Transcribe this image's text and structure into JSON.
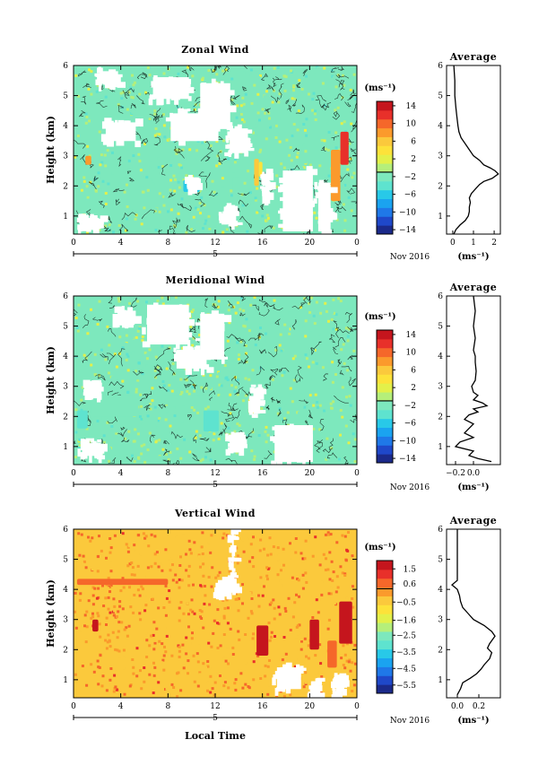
{
  "x_axis_label": "Local Time",
  "date_label": "Nov 2016",
  "date_day": "5",
  "chart_data": [
    {
      "type": "heatmap",
      "title": "Zonal Wind",
      "ylabel": "Height (km)",
      "xlabel": "",
      "xlim": [
        0,
        24
      ],
      "ylim": [
        0.4,
        6
      ],
      "x_ticks": [
        "0",
        "4",
        "8",
        "12",
        "16",
        "20",
        "0"
      ],
      "y_ticks": [
        "1",
        "2",
        "3",
        "4",
        "5",
        "6"
      ],
      "colorbar": {
        "unit": "(ms⁻¹)",
        "range": [
          -15,
          15
        ],
        "tick_values": [
          14,
          10,
          6,
          2,
          -2,
          -6,
          -10,
          -14
        ],
        "tick_labels": [
          "14",
          "10",
          "6",
          "2",
          "−2",
          "−6",
          "−10",
          "−14"
        ]
      },
      "dominant_value": -1,
      "background_color": "#7de8bd",
      "no_data_regions": [
        {
          "x": [
            2.0,
            4.0
          ],
          "y": [
            5.3,
            5.9
          ]
        },
        {
          "x": [
            6.5,
            10.0
          ],
          "y": [
            4.8,
            5.7
          ]
        },
        {
          "x": [
            10.5,
            13.5
          ],
          "y": [
            3.8,
            5.5
          ]
        },
        {
          "x": [
            2.5,
            5.5
          ],
          "y": [
            3.4,
            4.2
          ]
        },
        {
          "x": [
            8.0,
            12.5
          ],
          "y": [
            3.4,
            4.5
          ]
        },
        {
          "x": [
            13.0,
            15.0
          ],
          "y": [
            3.0,
            4.0
          ]
        },
        {
          "x": [
            0.5,
            2.5
          ],
          "y": [
            0.5,
            1.0
          ]
        },
        {
          "x": [
            9.5,
            10.5
          ],
          "y": [
            1.8,
            2.3
          ]
        },
        {
          "x": [
            12.5,
            14.0
          ],
          "y": [
            0.7,
            1.4
          ]
        },
        {
          "x": [
            16.0,
            16.8
          ],
          "y": [
            1.5,
            2.5
          ]
        },
        {
          "x": [
            17.5,
            20.5
          ],
          "y": [
            0.4,
            2.6
          ]
        },
        {
          "x": [
            20.5,
            22.0
          ],
          "y": [
            0.4,
            2.2
          ]
        }
      ],
      "features": [
        {
          "x": [
            1.0,
            1.5
          ],
          "y": [
            2.7,
            3.0
          ],
          "value": 8
        },
        {
          "x": [
            15.3,
            15.7
          ],
          "y": [
            2.0,
            2.9
          ],
          "value": 6
        },
        {
          "x": [
            22.6,
            23.3
          ],
          "y": [
            2.7,
            3.8
          ],
          "value": 12
        },
        {
          "x": [
            21.8,
            22.6
          ],
          "y": [
            1.5,
            3.2
          ],
          "value": 8
        },
        {
          "x": [
            15.7,
            16.0
          ],
          "y": [
            2.3,
            2.8
          ],
          "value": 4
        },
        {
          "x": [
            9.3,
            10.7
          ],
          "y": [
            1.8,
            2.2
          ],
          "value": -6
        },
        {
          "x": [
            3.0,
            4.5
          ],
          "y": [
            3.7,
            4.1
          ],
          "value": -4
        },
        {
          "x": [
            13.5,
            14.2
          ],
          "y": [
            1.8,
            2.3
          ],
          "value": -3
        }
      ],
      "profile": {
        "title": "Average",
        "xlabel": "(ms⁻¹)",
        "xlim": [
          -0.3,
          2.3
        ],
        "x_ticks": [
          0,
          1,
          2
        ],
        "x_tick_labels": [
          "0",
          "1",
          "2"
        ],
        "ylim": [
          0.4,
          6
        ],
        "y_ticks": [
          "1",
          "2",
          "3",
          "4",
          "5",
          "6"
        ],
        "points": [
          [
            0.05,
            0.4
          ],
          [
            0.15,
            0.55
          ],
          [
            0.35,
            0.7
          ],
          [
            0.6,
            0.85
          ],
          [
            0.75,
            1.0
          ],
          [
            0.8,
            1.15
          ],
          [
            0.8,
            1.3
          ],
          [
            0.85,
            1.45
          ],
          [
            0.8,
            1.6
          ],
          [
            0.9,
            1.75
          ],
          [
            1.1,
            1.9
          ],
          [
            1.3,
            2.05
          ],
          [
            1.5,
            2.15
          ],
          [
            1.9,
            2.25
          ],
          [
            2.2,
            2.4
          ],
          [
            2.05,
            2.5
          ],
          [
            1.8,
            2.6
          ],
          [
            1.5,
            2.7
          ],
          [
            1.3,
            2.85
          ],
          [
            1.0,
            3.0
          ],
          [
            0.8,
            3.2
          ],
          [
            0.6,
            3.4
          ],
          [
            0.4,
            3.6
          ],
          [
            0.3,
            3.8
          ],
          [
            0.25,
            4.0
          ],
          [
            0.2,
            4.3
          ],
          [
            0.15,
            4.6
          ],
          [
            0.1,
            5.0
          ],
          [
            0.1,
            5.5
          ],
          [
            0.05,
            6.0
          ]
        ]
      }
    },
    {
      "type": "heatmap",
      "title": "Meridional Wind",
      "ylabel": "Height (km)",
      "xlabel": "",
      "xlim": [
        0,
        24
      ],
      "ylim": [
        0.4,
        6
      ],
      "x_ticks": [
        "0",
        "4",
        "8",
        "12",
        "16",
        "20",
        "0"
      ],
      "y_ticks": [
        "1",
        "2",
        "3",
        "4",
        "5",
        "6"
      ],
      "colorbar": {
        "unit": "(ms⁻¹)",
        "range": [
          -15,
          15
        ],
        "tick_values": [
          14,
          10,
          6,
          2,
          -2,
          -6,
          -10,
          -14
        ],
        "tick_labels": [
          "14",
          "10",
          "6",
          "2",
          "−2",
          "−6",
          "−10",
          "−14"
        ]
      },
      "dominant_value": -1,
      "background_color": "#7de8bd",
      "no_data_regions": [
        {
          "x": [
            3.5,
            5.5
          ],
          "y": [
            5.0,
            5.6
          ]
        },
        {
          "x": [
            6.0,
            10.0
          ],
          "y": [
            4.3,
            5.8
          ]
        },
        {
          "x": [
            10.5,
            13.0
          ],
          "y": [
            3.8,
            5.5
          ]
        },
        {
          "x": [
            8.5,
            11.5
          ],
          "y": [
            3.5,
            4.3
          ]
        },
        {
          "x": [
            0.5,
            2.5
          ],
          "y": [
            0.6,
            1.2
          ]
        },
        {
          "x": [
            1.0,
            2.5
          ],
          "y": [
            2.6,
            3.2
          ]
        },
        {
          "x": [
            15.0,
            16.0
          ],
          "y": [
            2.0,
            3.0
          ]
        },
        {
          "x": [
            16.8,
            20.5
          ],
          "y": [
            0.4,
            1.8
          ]
        },
        {
          "x": [
            13.0,
            14.5
          ],
          "y": [
            0.8,
            1.4
          ]
        }
      ],
      "features": [
        {
          "x": [
            0.3,
            1.2
          ],
          "y": [
            1.6,
            2.2
          ],
          "value": -4
        },
        {
          "x": [
            1.5,
            5.5
          ],
          "y": [
            2.0,
            2.7
          ],
          "value": -3
        },
        {
          "x": [
            7.5,
            11.5
          ],
          "y": [
            2.4,
            2.7
          ],
          "value": -3
        },
        {
          "x": [
            11.0,
            12.3
          ],
          "y": [
            1.5,
            2.2
          ],
          "value": -5
        },
        {
          "x": [
            14.8,
            15.5
          ],
          "y": [
            2.1,
            2.6
          ],
          "value": 4
        }
      ],
      "profile": {
        "title": "Average",
        "xlabel": "(ms⁻¹)",
        "xlim": [
          -0.3,
          0.3
        ],
        "x_ticks": [
          -0.2,
          0.0
        ],
        "x_tick_labels": [
          "−0.2",
          "0.0"
        ],
        "ylim": [
          0.4,
          6
        ],
        "y_ticks": [
          "1",
          "2",
          "3",
          "4",
          "5",
          "6"
        ],
        "points": [
          [
            0.2,
            0.5
          ],
          [
            0.05,
            0.6
          ],
          [
            -0.05,
            0.7
          ],
          [
            0.0,
            0.85
          ],
          [
            -0.2,
            1.0
          ],
          [
            -0.15,
            1.15
          ],
          [
            0.0,
            1.3
          ],
          [
            -0.1,
            1.45
          ],
          [
            -0.05,
            1.6
          ],
          [
            0.0,
            1.75
          ],
          [
            -0.1,
            1.9
          ],
          [
            -0.05,
            2.05
          ],
          [
            0.05,
            2.15
          ],
          [
            0.0,
            2.25
          ],
          [
            0.15,
            2.35
          ],
          [
            0.1,
            2.45
          ],
          [
            0.0,
            2.55
          ],
          [
            0.05,
            2.7
          ],
          [
            0.0,
            2.8
          ],
          [
            -0.02,
            3.0
          ],
          [
            0.02,
            3.2
          ],
          [
            0.03,
            3.5
          ],
          [
            0.02,
            3.8
          ],
          [
            0.02,
            4.0
          ],
          [
            0.0,
            4.2
          ],
          [
            0.02,
            4.6
          ],
          [
            0.0,
            5.0
          ],
          [
            0.02,
            5.5
          ],
          [
            0.0,
            6.0
          ]
        ]
      }
    },
    {
      "type": "heatmap",
      "title": "Vertical Wind",
      "ylabel": "Height (km)",
      "xlabel": "Local Time",
      "xlim": [
        0,
        24
      ],
      "ylim": [
        0.4,
        6
      ],
      "x_ticks": [
        "0",
        "4",
        "8",
        "12",
        "16",
        "20",
        "0"
      ],
      "y_ticks": [
        "1",
        "2",
        "3",
        "4",
        "5",
        "6"
      ],
      "colorbar": {
        "unit": "(ms⁻¹)",
        "range": [
          -6,
          2
        ],
        "tick_values": [
          1.5,
          0.6,
          -0.5,
          -1.6,
          -2.5,
          -3.5,
          -4.5,
          -5.5
        ],
        "tick_labels": [
          "1.5",
          "0.6",
          "−0.5",
          "−1.6",
          "−2.5",
          "−3.5",
          "−4.5",
          "−5.5"
        ]
      },
      "dominant_value": 0.3,
      "background_color": "#fbc93c",
      "no_data_regions": [
        {
          "x": [
            13.2,
            13.8
          ],
          "y": [
            4.0,
            6.0
          ]
        },
        {
          "x": [
            12.0,
            14.0
          ],
          "y": [
            3.8,
            4.4
          ]
        },
        {
          "x": [
            17.0,
            19.5
          ],
          "y": [
            0.6,
            1.5
          ]
        },
        {
          "x": [
            20.0,
            21.0
          ],
          "y": [
            0.4,
            1.0
          ]
        },
        {
          "x": [
            22.0,
            23.0
          ],
          "y": [
            0.4,
            1.2
          ]
        }
      ],
      "features": [
        {
          "x": [
            0.3,
            8.0
          ],
          "y": [
            4.15,
            4.35
          ],
          "value": 0.6
        },
        {
          "x": [
            1.6,
            2.1
          ],
          "y": [
            2.6,
            3.0
          ],
          "value": 1.5
        },
        {
          "x": [
            15.5,
            16.5
          ],
          "y": [
            1.8,
            2.8
          ],
          "value": 1.5
        },
        {
          "x": [
            20.0,
            20.8
          ],
          "y": [
            2.0,
            3.0
          ],
          "value": 1.8
        },
        {
          "x": [
            22.5,
            23.6
          ],
          "y": [
            2.2,
            3.6
          ],
          "value": 1.8
        },
        {
          "x": [
            21.5,
            22.3
          ],
          "y": [
            1.4,
            2.3
          ],
          "value": 0.8
        }
      ],
      "profile": {
        "title": "Average",
        "xlabel": "(ms⁻¹)",
        "xlim": [
          -0.1,
          0.4
        ],
        "x_ticks": [
          0.0,
          0.2
        ],
        "x_tick_labels": [
          "0.0",
          "0.2"
        ],
        "ylim": [
          0.4,
          6
        ],
        "y_ticks": [
          "1",
          "2",
          "3",
          "4",
          "5",
          "6"
        ],
        "points": [
          [
            0.0,
            0.5
          ],
          [
            0.03,
            0.7
          ],
          [
            0.05,
            0.9
          ],
          [
            0.12,
            1.05
          ],
          [
            0.18,
            1.2
          ],
          [
            0.22,
            1.35
          ],
          [
            0.25,
            1.5
          ],
          [
            0.3,
            1.7
          ],
          [
            0.32,
            1.9
          ],
          [
            0.28,
            2.05
          ],
          [
            0.3,
            2.2
          ],
          [
            0.35,
            2.45
          ],
          [
            0.32,
            2.6
          ],
          [
            0.25,
            2.8
          ],
          [
            0.15,
            3.0
          ],
          [
            0.1,
            3.2
          ],
          [
            0.05,
            3.4
          ],
          [
            0.03,
            3.6
          ],
          [
            0.02,
            3.8
          ],
          [
            0.0,
            4.0
          ],
          [
            -0.05,
            4.15
          ],
          [
            0.0,
            4.3
          ],
          [
            0.0,
            4.6
          ],
          [
            0.0,
            5.0
          ],
          [
            0.0,
            5.5
          ],
          [
            0.0,
            6.0
          ]
        ]
      }
    }
  ]
}
